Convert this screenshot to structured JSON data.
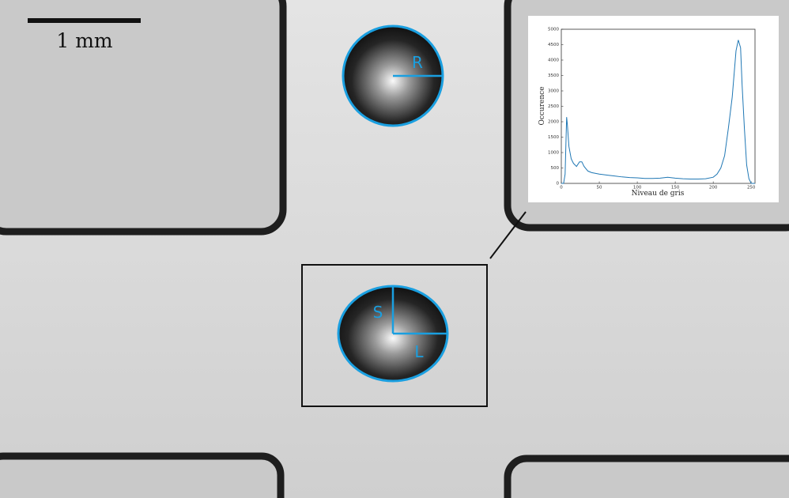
{
  "scale_bar": {
    "label": "1 mm"
  },
  "annotations": {
    "radius": "R",
    "short_axis": "S",
    "long_axis": "L"
  },
  "chart_data": {
    "type": "line",
    "xlabel": "Niveau de gris",
    "ylabel": "Occurence",
    "x": [
      0,
      3,
      5,
      7,
      8,
      10,
      13,
      16,
      20,
      24,
      27,
      30,
      35,
      40,
      50,
      60,
      70,
      80,
      90,
      100,
      110,
      120,
      130,
      140,
      150,
      160,
      170,
      180,
      190,
      200,
      205,
      210,
      215,
      220,
      225,
      230,
      233,
      236,
      238,
      241,
      244,
      247,
      250,
      255
    ],
    "values": [
      0,
      0,
      300,
      2150,
      1900,
      1200,
      800,
      650,
      550,
      700,
      700,
      550,
      400,
      350,
      300,
      270,
      240,
      210,
      190,
      180,
      160,
      160,
      170,
      200,
      170,
      150,
      140,
      140,
      150,
      200,
      300,
      500,
      900,
      1800,
      2800,
      4300,
      4650,
      4400,
      3200,
      1800,
      600,
      150,
      0,
      0
    ],
    "color": "#1f77b4",
    "xlim": [
      0,
      255
    ],
    "ylim": [
      0,
      5000
    ],
    "xticks": [
      0,
      50,
      100,
      150,
      200,
      250
    ],
    "yticks": [
      0,
      500,
      1000,
      1500,
      2000,
      2500,
      3000,
      3500,
      4000,
      4500,
      5000
    ]
  }
}
